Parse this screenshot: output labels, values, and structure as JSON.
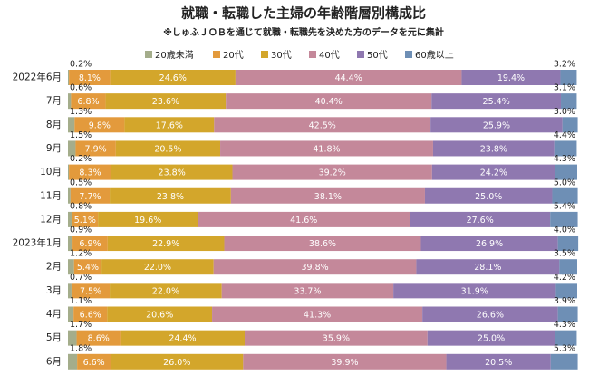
{
  "chart_data": {
    "type": "stacked-bar",
    "title": "就職・転職した主婦の年齢階層別構成比",
    "subtitle": "※しゅふＪＯＢを通じて就職・転職先を決めた方のデータを元に集計",
    "categories": [
      "2022年6月",
      "7月",
      "8月",
      "9月",
      "10月",
      "11月",
      "12月",
      "2023年1月",
      "2月",
      "3月",
      "4月",
      "5月",
      "6月"
    ],
    "xlim": [
      0,
      100
    ],
    "series": [
      {
        "name": "20歳未満",
        "color": "#a4ad8b",
        "values": [
          0.2,
          0.6,
          1.3,
          1.5,
          0.2,
          0.5,
          0.8,
          0.9,
          1.2,
          0.7,
          1.1,
          1.7,
          1.8
        ],
        "value_labels": [
          "0.2%",
          "0.6%",
          "1.3%",
          "1.5%",
          "0.2%",
          "0.5%",
          "0.8%",
          "0.9%",
          "1.2%",
          "0.7%",
          "1.1%",
          "1.7%",
          "1.8%"
        ]
      },
      {
        "name": "20代",
        "color": "#e39a3c",
        "values": [
          8.1,
          6.8,
          9.8,
          7.9,
          8.3,
          7.7,
          5.1,
          6.9,
          5.4,
          7.5,
          6.6,
          8.6,
          6.6
        ],
        "value_labels": [
          "8.1%",
          "6.8%",
          "9.8%",
          "7.9%",
          "8.3%",
          "7.7%",
          "5.1%",
          "6.9%",
          "5.4%",
          "7.5%",
          "6.6%",
          "8.6%",
          "6.6%"
        ]
      },
      {
        "name": "30代",
        "color": "#d3a62b",
        "values": [
          24.6,
          23.6,
          17.6,
          20.5,
          23.8,
          23.8,
          19.6,
          22.9,
          22.0,
          22.0,
          20.6,
          24.4,
          26.0
        ],
        "value_labels": [
          "24.6%",
          "23.6%",
          "17.6%",
          "20.5%",
          "23.8%",
          "23.8%",
          "19.6%",
          "22.9%",
          "22.0%",
          "22.0%",
          "20.6%",
          "24.4%",
          "26.0%"
        ]
      },
      {
        "name": "40代",
        "color": "#c4889a",
        "values": [
          44.4,
          40.4,
          42.5,
          41.8,
          39.2,
          38.1,
          41.6,
          38.6,
          39.8,
          33.7,
          41.3,
          35.9,
          39.9
        ],
        "value_labels": [
          "44.4%",
          "40.4%",
          "42.5%",
          "41.8%",
          "39.2%",
          "38.1%",
          "41.6%",
          "38.6%",
          "39.8%",
          "33.7%",
          "41.3%",
          "35.9%",
          "39.9%"
        ]
      },
      {
        "name": "50代",
        "color": "#8f78b0",
        "values": [
          19.4,
          25.4,
          25.9,
          23.8,
          24.2,
          25.0,
          27.6,
          26.9,
          28.1,
          31.9,
          26.6,
          25.0,
          20.5
        ],
        "value_labels": [
          "19.4%",
          "25.4%",
          "25.9%",
          "23.8%",
          "24.2%",
          "25.0%",
          "27.6%",
          "26.9%",
          "28.1%",
          "31.9%",
          "26.6%",
          "25.0%",
          "20.5%"
        ]
      },
      {
        "name": "60歳以上",
        "color": "#6e8fb5",
        "values": [
          3.2,
          3.1,
          3.0,
          4.4,
          4.3,
          5.0,
          5.4,
          4.0,
          3.5,
          4.2,
          3.9,
          4.3,
          5.3
        ],
        "value_labels": [
          "3.2%",
          "3.1%",
          "3.0%",
          "4.4%",
          "4.3%",
          "5.0%",
          "5.4%",
          "4.0%",
          "3.5%",
          "4.2%",
          "3.9%",
          "4.3%",
          "5.3%"
        ]
      }
    ]
  }
}
